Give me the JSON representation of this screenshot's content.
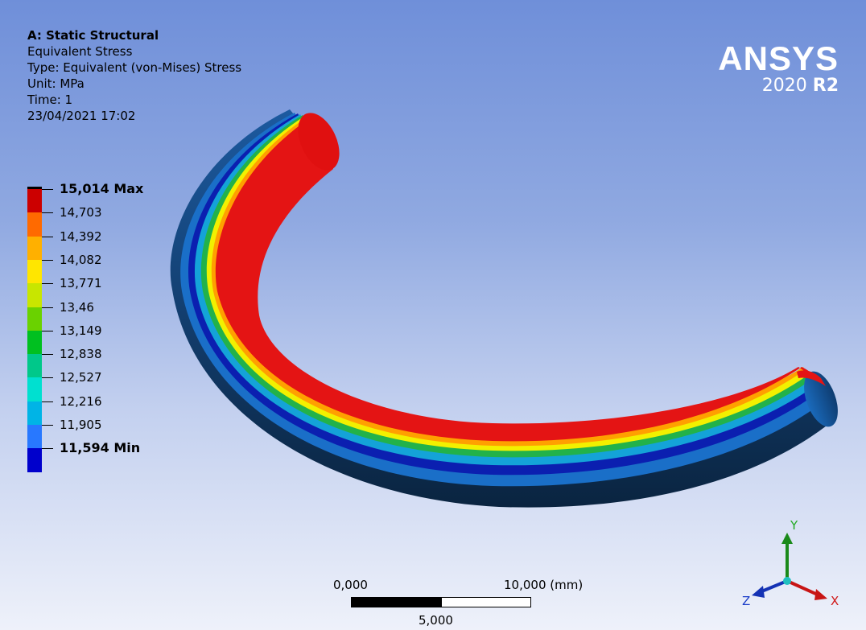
{
  "info": {
    "title": "A: Static Structural",
    "result": "Equivalent Stress",
    "type": "Type: Equivalent (von-Mises) Stress",
    "unit": "Unit: MPa",
    "time": "Time: 1",
    "timestamp": "23/04/2021 17:02"
  },
  "brand": {
    "name": "ANSYS",
    "version_year": "2020",
    "version_release": "R2"
  },
  "legend": {
    "labels": [
      "15,014 Max",
      "14,703",
      "14,392",
      "14,082",
      "13,771",
      "13,46",
      "13,149",
      "12,838",
      "12,527",
      "12,216",
      "11,905",
      "11,594 Min"
    ],
    "colors": [
      "#cc0000",
      "#ff6a00",
      "#ffb000",
      "#ffe600",
      "#c8e600",
      "#6ad200",
      "#00c020",
      "#00c88a",
      "#00e0d0",
      "#00b4e6",
      "#2878ff",
      "#0000cc"
    ],
    "max_color": "#000000"
  },
  "scale_bar": {
    "left": "0,000",
    "mid": "5,000",
    "right": "10,000 (mm)"
  },
  "triad": {
    "x": "X",
    "y": "Y",
    "z": "Z"
  },
  "colors": {
    "red": "#e41414",
    "orange": "#ffa200",
    "yellow": "#f2f200",
    "green": "#22b24a",
    "blue": "#0a1ea8",
    "teal": "#0f68b8"
  }
}
